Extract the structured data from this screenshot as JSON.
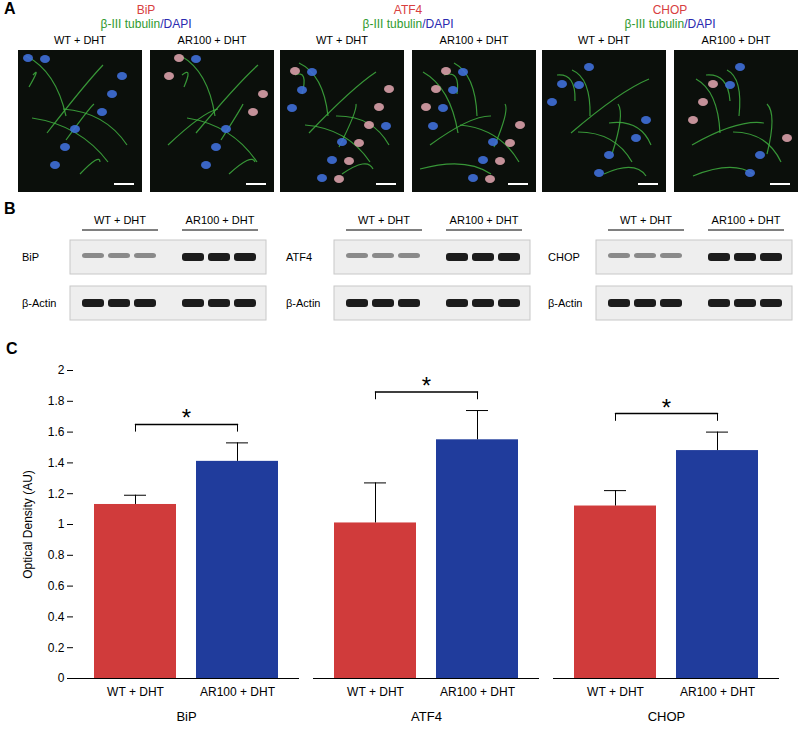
{
  "panel_a": {
    "label": "A",
    "groups": [
      {
        "marker": "BiP",
        "stain": "β-III tubulin",
        "counterstain": "/DAPI",
        "images": [
          "WT + DHT",
          "AR100 + DHT"
        ]
      },
      {
        "marker": "ATF4",
        "stain": "β-III tubulin",
        "counterstain": "/DAPI",
        "images": [
          "WT + DHT",
          "AR100 + DHT"
        ]
      },
      {
        "marker": "CHOP",
        "stain": "β-III tubulin",
        "counterstain": "/DAPI",
        "images": [
          "WT + DHT",
          "AR100 + DHT"
        ]
      }
    ]
  },
  "panel_b": {
    "label": "B",
    "blots": [
      {
        "rows": [
          "BiP",
          "β-Actin"
        ],
        "lanes": [
          "WT + DHT",
          "AR100 + DHT"
        ]
      },
      {
        "rows": [
          "ATF4",
          "β-Actin"
        ],
        "lanes": [
          "WT + DHT",
          "AR100 + DHT"
        ]
      },
      {
        "rows": [
          "CHOP",
          "β-Actin"
        ],
        "lanes": [
          "WT + DHT",
          "AR100 + DHT"
        ]
      }
    ]
  },
  "chart_data": {
    "type": "bar",
    "title": "C",
    "ylabel": "Optical Density (AU)",
    "categories": [
      "BiP",
      "ATF4",
      "CHOP"
    ],
    "series": [
      {
        "name": "WT + DHT",
        "color": "#d03b3b",
        "values": [
          1.13,
          1.01,
          1.12
        ],
        "errors": [
          0.06,
          0.26,
          0.1
        ]
      },
      {
        "name": "AR100 + DHT",
        "color": "#203c9c",
        "values": [
          1.41,
          1.55,
          1.48
        ],
        "errors": [
          0.12,
          0.19,
          0.12
        ]
      }
    ],
    "annotations": [
      "*",
      "*",
      "*"
    ],
    "ylim": [
      0,
      2
    ],
    "yticks": [
      0,
      0.2,
      0.4,
      0.6,
      0.8,
      1,
      1.2,
      1.4,
      1.6,
      1.8,
      2
    ],
    "grid": false
  }
}
